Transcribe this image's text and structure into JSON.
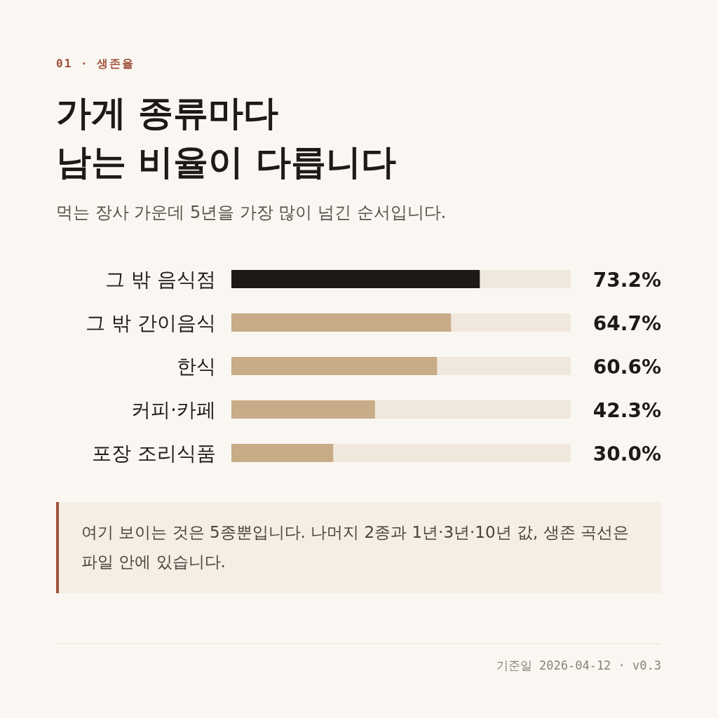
{
  "chart_data": {
    "type": "bar",
    "orientation": "horizontal",
    "title": "가게 종류마다\n남는 비율이 다릅니다",
    "subtitle": "먹는 장사 가운데 5년을 가장 많이 넘긴 순서입니다.",
    "categories": [
      "그 밖 음식점",
      "그 밖 간이음식",
      "한식",
      "커피·카페",
      "포장 조리식품"
    ],
    "values": [
      73.2,
      64.7,
      60.6,
      42.3,
      30.0
    ],
    "colors": [
      "#1f1a17",
      "#c8ab87",
      "#c8ab87",
      "#c8ab87",
      "#c8ab87"
    ],
    "value_labels": [
      "73.2%",
      "64.7%",
      "60.6%",
      "42.3%",
      "30.0%"
    ],
    "xlim": [
      0,
      100
    ],
    "tick_labels": "y",
    "annotations": [
      "01 · 생존율",
      "여기 보이는 것은 5종뿐입니다. 나머지 2종과 1년·3년·10년 값, 생존 곡선은 파일 안에 있습니다.",
      "기준일 2026-04-12 · v0.3"
    ]
  }
}
